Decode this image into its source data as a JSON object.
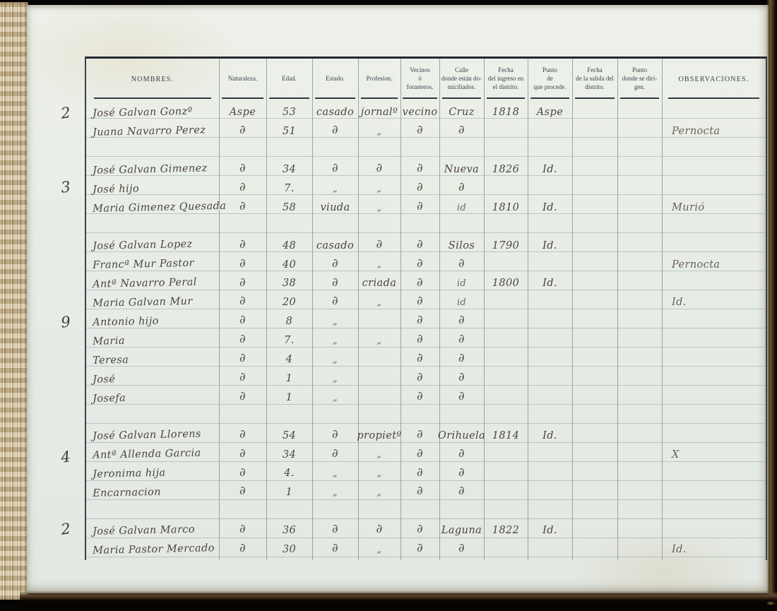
{
  "table": {
    "columns": [
      {
        "id": "nombres",
        "label": "NOMBRES."
      },
      {
        "id": "naturaleza",
        "label": "Naturaleza."
      },
      {
        "id": "edad",
        "label": "Edad."
      },
      {
        "id": "estado",
        "label": "Estado."
      },
      {
        "id": "profesion",
        "label": "Profesion."
      },
      {
        "id": "vecinos",
        "label": "Vecinos\nó\nforasteros."
      },
      {
        "id": "calle",
        "label": "Calle\ndonde están do-\nmiciliados."
      },
      {
        "id": "fecha_ingreso",
        "label": "Fecha\ndel ingreso en\nel distrito."
      },
      {
        "id": "punto_procede",
        "label": "Punto\nde\nque procede."
      },
      {
        "id": "fecha_salida",
        "label": "Fecha\nde la salida del\ndistrito."
      },
      {
        "id": "punto_dirigen",
        "label": "Punto\ndonde se diri-\ngen."
      },
      {
        "id": "observaciones",
        "label": "OBSERVACIONES."
      }
    ],
    "groups": [
      {
        "count": "2",
        "rows": [
          {
            "nombres": "José Galvan Gonzº",
            "naturaleza": "Aspe",
            "edad": "53",
            "estado": "casado",
            "profesion": "jornalº",
            "vecinos": "vecino",
            "calle": "Cruz",
            "fecha_ingreso": "1818",
            "punto_procede": "Aspe"
          },
          {
            "nombres": "Juana Navarro Perez",
            "naturaleza": "∂",
            "edad": "51",
            "estado": "∂",
            "profesion": "„",
            "vecinos": "∂",
            "calle": "∂",
            "observaciones": "Pernocta"
          }
        ]
      },
      {
        "count": "3",
        "rows": [
          {
            "nombres": "José Galvan Gimenez",
            "naturaleza": "∂",
            "edad": "34",
            "estado": "∂",
            "profesion": "∂",
            "vecinos": "∂",
            "calle": "Nueva",
            "fecha_ingreso": "1826",
            "punto_procede": "Id."
          },
          {
            "nombres": "José hijo",
            "naturaleza": "∂",
            "edad": "7.",
            "estado": "„",
            "profesion": "„",
            "vecinos": "∂",
            "calle": "∂"
          },
          {
            "nombres": "Maria Gimenez Quesada",
            "naturaleza": "∂",
            "edad": "58",
            "estado": "viuda",
            "profesion": "„",
            "vecinos": "∂",
            "calle": "id",
            "fecha_ingreso": "1810",
            "punto_procede": "Id.",
            "observaciones": "Murió"
          }
        ]
      },
      {
        "count": "9",
        "rows": [
          {
            "nombres": "José Galvan Lopez",
            "naturaleza": "∂",
            "edad": "48",
            "estado": "casado",
            "profesion": "∂",
            "vecinos": "∂",
            "calle": "Silos",
            "fecha_ingreso": "1790",
            "punto_procede": "Id."
          },
          {
            "nombres": "Francª Mur Pastor",
            "naturaleza": "∂",
            "edad": "40",
            "estado": "∂",
            "profesion": "„",
            "vecinos": "∂",
            "calle": "∂",
            "observaciones": "Pernocta"
          },
          {
            "nombres": "Antª Navarro Peral",
            "naturaleza": "∂",
            "edad": "38",
            "estado": "∂",
            "profesion": "criada",
            "vecinos": "∂",
            "calle": "id",
            "fecha_ingreso": "1800",
            "punto_procede": "Id."
          },
          {
            "nombres": "Maria Galvan Mur",
            "naturaleza": "∂",
            "edad": "20",
            "estado": "∂",
            "profesion": "„",
            "vecinos": "∂",
            "calle": "id",
            "observaciones": "Id."
          },
          {
            "nombres": "Antonio hijo",
            "naturaleza": "∂",
            "edad": "8",
            "estado": "„",
            "vecinos": "∂",
            "calle": "∂"
          },
          {
            "nombres": "Maria",
            "naturaleza": "∂",
            "edad": "7.",
            "estado": "„",
            "profesion": "„",
            "vecinos": "∂",
            "calle": "∂"
          },
          {
            "nombres": "Teresa",
            "naturaleza": "∂",
            "edad": "4",
            "estado": "„",
            "vecinos": "∂",
            "calle": "∂"
          },
          {
            "nombres": "José",
            "naturaleza": "∂",
            "edad": "1",
            "estado": "„",
            "vecinos": "∂",
            "calle": "∂"
          },
          {
            "nombres": "Josefa",
            "naturaleza": "∂",
            "edad": "1",
            "estado": "„",
            "vecinos": "∂",
            "calle": "∂"
          }
        ]
      },
      {
        "count": "4",
        "rows": [
          {
            "nombres": "José Galvan Llorens",
            "naturaleza": "∂",
            "edad": "54",
            "estado": "∂",
            "profesion": "propietº",
            "vecinos": "∂",
            "calle": "Orihuela",
            "fecha_ingreso": "1814",
            "punto_procede": "Id."
          },
          {
            "nombres": "Antª Allenda Garcia",
            "naturaleza": "∂",
            "edad": "34",
            "estado": "∂",
            "profesion": "„",
            "vecinos": "∂",
            "calle": "∂",
            "observaciones": "X"
          },
          {
            "nombres": "Jeronima hija",
            "naturaleza": "∂",
            "edad": "4.",
            "estado": "„",
            "profesion": "„",
            "vecinos": "∂",
            "calle": "∂"
          },
          {
            "nombres": "Encarnacion",
            "naturaleza": "∂",
            "edad": "1",
            "estado": "„",
            "profesion": "„",
            "vecinos": "∂",
            "calle": "∂"
          }
        ]
      },
      {
        "count": "2",
        "rows": [
          {
            "nombres": "José Galvan Marco",
            "naturaleza": "∂",
            "edad": "36",
            "estado": "∂",
            "profesion": "∂",
            "vecinos": "∂",
            "calle": "Laguna",
            "fecha_ingreso": "1822",
            "punto_procede": "Id."
          },
          {
            "nombres": "Maria Pastor Mercado",
            "naturaleza": "∂",
            "edad": "30",
            "estado": "∂",
            "profesion": "„",
            "vecinos": "∂",
            "calle": "∂",
            "observaciones": "Id."
          }
        ]
      }
    ]
  },
  "colors": {
    "paper": "#e7ece6",
    "ink": "#4c463c",
    "print": "#3b424d",
    "page_edges": "#c9b892"
  }
}
